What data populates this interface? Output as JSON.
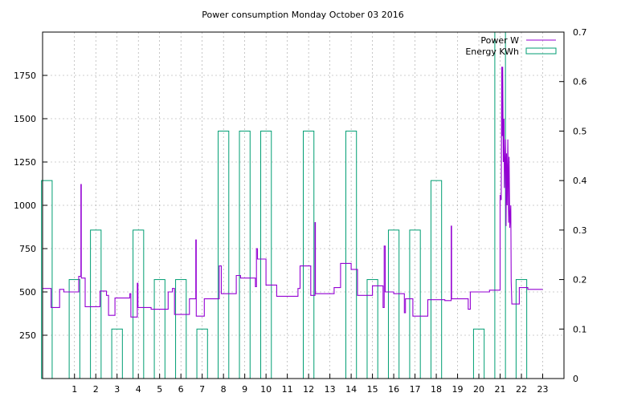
{
  "chart_data": {
    "type": "line",
    "title": "Power consumption Monday October 03 2016",
    "legend_position": "top-right",
    "grid": true,
    "x": {
      "range": [
        -0.5,
        24
      ],
      "tick_labels": [
        "1",
        "2",
        "3",
        "4",
        "5",
        "6",
        "7",
        "8",
        "9",
        "10",
        "11",
        "12",
        "13",
        "14",
        "15",
        "16",
        "17",
        "18",
        "19",
        "20",
        "21",
        "22",
        "23"
      ]
    },
    "y_left": {
      "range": [
        0,
        2000
      ],
      "tick_labels": [
        "250",
        "500",
        "750",
        "1000",
        "1250",
        "1500",
        "1750"
      ]
    },
    "y_right": {
      "range": [
        0,
        0.7
      ],
      "tick_labels": [
        "0",
        "0.1",
        "0.2",
        "0.3",
        "0.4",
        "0.5",
        "0.6",
        "0.7"
      ]
    },
    "series": [
      {
        "name": "Power W",
        "color": "#9400d3",
        "axis": "left",
        "points": [
          [
            -0.5,
            520
          ],
          [
            -0.1,
            520
          ],
          [
            -0.1,
            410
          ],
          [
            0.3,
            410
          ],
          [
            0.3,
            515
          ],
          [
            0.5,
            515
          ],
          [
            0.5,
            500
          ],
          [
            1.2,
            500
          ],
          [
            1.2,
            590
          ],
          [
            1.3,
            590
          ],
          [
            1.3,
            1120
          ],
          [
            1.32,
            1120
          ],
          [
            1.32,
            580
          ],
          [
            1.5,
            580
          ],
          [
            1.5,
            415
          ],
          [
            2.2,
            415
          ],
          [
            2.2,
            505
          ],
          [
            2.5,
            505
          ],
          [
            2.5,
            480
          ],
          [
            2.6,
            480
          ],
          [
            2.6,
            365
          ],
          [
            2.9,
            365
          ],
          [
            2.9,
            465
          ],
          [
            3.6,
            465
          ],
          [
            3.6,
            490
          ],
          [
            3.65,
            490
          ],
          [
            3.65,
            355
          ],
          [
            3.95,
            355
          ],
          [
            3.95,
            550
          ],
          [
            3.98,
            550
          ],
          [
            3.98,
            410
          ],
          [
            4.6,
            410
          ],
          [
            4.6,
            400
          ],
          [
            5.4,
            400
          ],
          [
            5.4,
            500
          ],
          [
            5.6,
            500
          ],
          [
            5.6,
            520
          ],
          [
            5.7,
            520
          ],
          [
            5.7,
            370
          ],
          [
            6.4,
            370
          ],
          [
            6.4,
            460
          ],
          [
            6.7,
            460
          ],
          [
            6.7,
            800
          ],
          [
            6.72,
            800
          ],
          [
            6.72,
            360
          ],
          [
            7.1,
            360
          ],
          [
            7.1,
            460
          ],
          [
            7.8,
            460
          ],
          [
            7.8,
            650
          ],
          [
            7.9,
            650
          ],
          [
            7.9,
            490
          ],
          [
            8.6,
            490
          ],
          [
            8.6,
            595
          ],
          [
            8.8,
            595
          ],
          [
            8.8,
            580
          ],
          [
            9.5,
            580
          ],
          [
            9.5,
            530
          ],
          [
            9.55,
            530
          ],
          [
            9.55,
            750
          ],
          [
            9.6,
            750
          ],
          [
            9.6,
            690
          ],
          [
            10.0,
            690
          ],
          [
            10.0,
            540
          ],
          [
            10.5,
            540
          ],
          [
            10.5,
            475
          ],
          [
            11.5,
            475
          ],
          [
            11.5,
            520
          ],
          [
            11.6,
            520
          ],
          [
            11.6,
            650
          ],
          [
            12.1,
            650
          ],
          [
            12.1,
            480
          ],
          [
            12.3,
            480
          ],
          [
            12.3,
            900
          ],
          [
            12.32,
            900
          ],
          [
            12.32,
            490
          ],
          [
            13.2,
            490
          ],
          [
            13.2,
            525
          ],
          [
            13.5,
            525
          ],
          [
            13.5,
            665
          ],
          [
            14.0,
            665
          ],
          [
            14.0,
            630
          ],
          [
            14.3,
            630
          ],
          [
            14.3,
            480
          ],
          [
            15.0,
            480
          ],
          [
            15.0,
            535
          ],
          [
            15.5,
            535
          ],
          [
            15.5,
            410
          ],
          [
            15.55,
            410
          ],
          [
            15.55,
            765
          ],
          [
            15.6,
            765
          ],
          [
            15.6,
            500
          ],
          [
            16.0,
            500
          ],
          [
            16.0,
            490
          ],
          [
            16.5,
            490
          ],
          [
            16.5,
            380
          ],
          [
            16.55,
            380
          ],
          [
            16.55,
            460
          ],
          [
            16.9,
            460
          ],
          [
            16.9,
            360
          ],
          [
            17.6,
            360
          ],
          [
            17.6,
            455
          ],
          [
            18.4,
            455
          ],
          [
            18.4,
            450
          ],
          [
            18.7,
            450
          ],
          [
            18.7,
            880
          ],
          [
            18.72,
            880
          ],
          [
            18.72,
            460
          ],
          [
            19.5,
            460
          ],
          [
            19.5,
            400
          ],
          [
            19.6,
            400
          ],
          [
            19.6,
            500
          ],
          [
            20.5,
            500
          ],
          [
            20.5,
            510
          ],
          [
            21.0,
            510
          ],
          [
            21.0,
            1060
          ],
          [
            21.05,
            1030
          ],
          [
            21.08,
            1800
          ],
          [
            21.1,
            1400
          ],
          [
            21.12,
            1800
          ],
          [
            21.15,
            1250
          ],
          [
            21.18,
            1500
          ],
          [
            21.2,
            1100
          ],
          [
            21.25,
            1380
          ],
          [
            21.28,
            880
          ],
          [
            21.3,
            1300
          ],
          [
            21.33,
            1000
          ],
          [
            21.36,
            1380
          ],
          [
            21.4,
            900
          ],
          [
            21.42,
            1280
          ],
          [
            21.45,
            870
          ],
          [
            21.5,
            1000
          ],
          [
            21.52,
            560
          ],
          [
            21.55,
            430
          ],
          [
            21.9,
            430
          ],
          [
            21.9,
            525
          ],
          [
            22.3,
            525
          ],
          [
            22.3,
            515
          ],
          [
            23.0,
            515
          ]
        ]
      },
      {
        "name": "Energy KWh",
        "color": "#009e73",
        "axis": "right",
        "bars": [
          {
            "x": -0.3,
            "value": 0.4
          },
          {
            "x": 1.0,
            "value": 0.2
          },
          {
            "x": 2.0,
            "value": 0.3
          },
          {
            "x": 3.0,
            "value": 0.1
          },
          {
            "x": 4.0,
            "value": 0.3
          },
          {
            "x": 5.0,
            "value": 0.2
          },
          {
            "x": 6.0,
            "value": 0.2
          },
          {
            "x": 7.0,
            "value": 0.1
          },
          {
            "x": 8.0,
            "value": 0.5
          },
          {
            "x": 9.0,
            "value": 0.5
          },
          {
            "x": 10.0,
            "value": 0.5
          },
          {
            "x": 12.0,
            "value": 0.5
          },
          {
            "x": 14.0,
            "value": 0.5
          },
          {
            "x": 15.0,
            "value": 0.2
          },
          {
            "x": 16.0,
            "value": 0.3
          },
          {
            "x": 17.0,
            "value": 0.3
          },
          {
            "x": 18.0,
            "value": 0.4
          },
          {
            "x": 20.0,
            "value": 0.1
          },
          {
            "x": 21.0,
            "value": 0.7
          },
          {
            "x": 22.0,
            "value": 0.2
          }
        ]
      }
    ]
  }
}
